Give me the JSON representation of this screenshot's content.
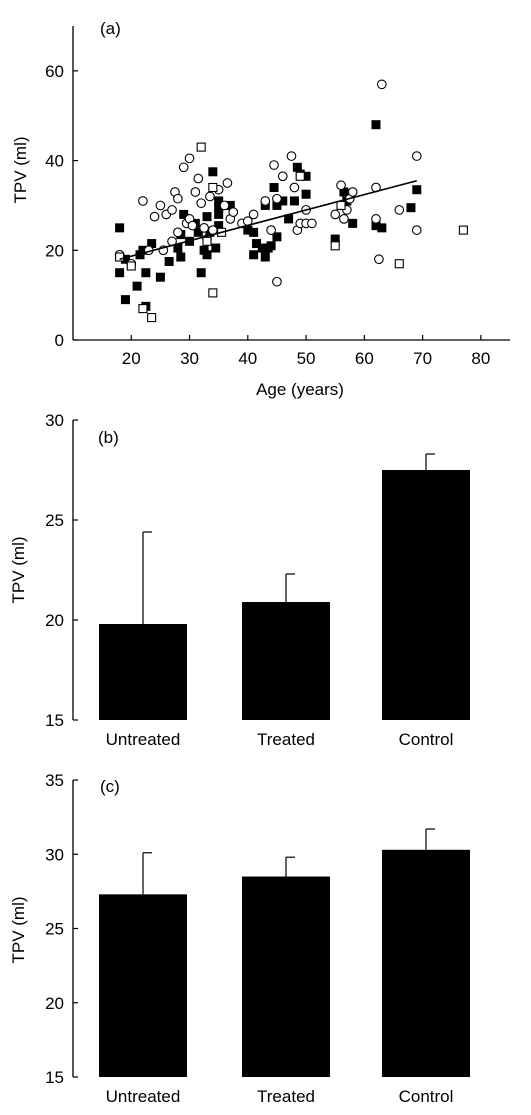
{
  "chart_data": [
    {
      "type": "scatter",
      "panel_label": "(a)",
      "xlabel": "Age (years)",
      "ylabel": "TPV (ml)",
      "xlim": [
        10,
        85
      ],
      "ylim": [
        0,
        70
      ],
      "xticks": [
        20,
        30,
        40,
        50,
        60,
        70,
        80
      ],
      "yticks": [
        0,
        20,
        40,
        60
      ],
      "fit_line": {
        "x": [
          18,
          69
        ],
        "y": [
          18.0,
          35.5
        ]
      },
      "series": [
        {
          "marker": "filled-square",
          "points": [
            [
              18,
              25
            ],
            [
              18,
              15
            ],
            [
              19,
              18
            ],
            [
              19,
              9
            ],
            [
              21,
              12
            ],
            [
              21.5,
              19
            ],
            [
              22,
              20
            ],
            [
              22.5,
              15
            ],
            [
              22.5,
              7.5
            ],
            [
              23.5,
              21.5
            ],
            [
              25,
              14
            ],
            [
              26.5,
              17.5
            ],
            [
              28,
              20.5
            ],
            [
              28.5,
              18.5
            ],
            [
              28.5,
              23.5
            ],
            [
              29,
              28
            ],
            [
              30,
              22
            ],
            [
              31,
              26
            ],
            [
              31.5,
              24
            ],
            [
              32,
              15
            ],
            [
              32.5,
              20
            ],
            [
              33,
              19
            ],
            [
              33,
              27.5
            ],
            [
              33.5,
              24
            ],
            [
              34,
              37.5
            ],
            [
              34.5,
              20.5
            ],
            [
              35,
              31
            ],
            [
              35,
              29.5
            ],
            [
              35,
              28
            ],
            [
              35,
              25.5
            ],
            [
              37,
              30
            ],
            [
              40,
              24.5
            ],
            [
              41,
              24
            ],
            [
              41,
              19
            ],
            [
              41.5,
              21.5
            ],
            [
              42.5,
              20.5
            ],
            [
              43,
              18.5
            ],
            [
              43,
              30
            ],
            [
              43.5,
              20.5
            ],
            [
              44,
              21
            ],
            [
              44.5,
              34
            ],
            [
              45,
              30
            ],
            [
              45,
              23
            ],
            [
              46,
              31
            ],
            [
              47,
              27
            ],
            [
              48,
              31
            ],
            [
              48.5,
              38.5
            ],
            [
              49,
              37
            ],
            [
              50,
              36.5
            ],
            [
              50,
              32.5
            ],
            [
              55,
              22.5
            ],
            [
              56.5,
              33
            ],
            [
              57,
              31
            ],
            [
              58,
              26
            ],
            [
              62,
              48
            ],
            [
              62,
              25.5
            ],
            [
              63,
              25
            ],
            [
              68,
              29.5
            ],
            [
              69,
              33.5
            ]
          ]
        },
        {
          "marker": "open-circle",
          "points": [
            [
              18,
              19
            ],
            [
              20,
              17
            ],
            [
              22,
              31
            ],
            [
              23,
              20
            ],
            [
              24,
              27.5
            ],
            [
              25,
              30
            ],
            [
              25.5,
              20
            ],
            [
              26,
              28
            ],
            [
              27,
              29
            ],
            [
              27,
              22
            ],
            [
              27.5,
              33
            ],
            [
              28,
              31.5
            ],
            [
              28,
              24
            ],
            [
              29,
              38.5
            ],
            [
              29.5,
              26
            ],
            [
              30,
              40.5
            ],
            [
              30,
              27
            ],
            [
              30.5,
              25.5
            ],
            [
              31,
              33
            ],
            [
              31.5,
              36
            ],
            [
              32,
              30.5
            ],
            [
              32.5,
              25
            ],
            [
              33,
              22.5
            ],
            [
              33.5,
              32
            ],
            [
              34,
              24.5
            ],
            [
              35,
              33.5
            ],
            [
              36,
              30
            ],
            [
              36.5,
              35
            ],
            [
              37,
              27
            ],
            [
              37.5,
              28.5
            ],
            [
              39,
              26
            ],
            [
              40,
              26.5
            ],
            [
              41,
              28
            ],
            [
              43,
              31
            ],
            [
              44,
              24.5
            ],
            [
              44.5,
              39
            ],
            [
              45,
              31.5
            ],
            [
              45,
              13
            ],
            [
              46,
              36.5
            ],
            [
              47.5,
              41
            ],
            [
              48,
              34
            ],
            [
              48.5,
              24.5
            ],
            [
              49,
              26
            ],
            [
              50,
              26
            ],
            [
              50,
              29
            ],
            [
              51,
              26
            ],
            [
              55,
              28
            ],
            [
              56,
              34.5
            ],
            [
              56.5,
              27
            ],
            [
              57,
              29
            ],
            [
              57.5,
              31.5
            ],
            [
              58,
              33
            ],
            [
              62,
              27
            ],
            [
              62,
              34
            ],
            [
              62.5,
              18
            ],
            [
              63,
              57
            ],
            [
              66,
              29
            ],
            [
              69,
              41
            ],
            [
              69,
              24.5
            ]
          ]
        },
        {
          "marker": "open-square",
          "points": [
            [
              18,
              18.5
            ],
            [
              20,
              16.5
            ],
            [
              22,
              7
            ],
            [
              23.5,
              5
            ],
            [
              32,
              43
            ],
            [
              33,
              22
            ],
            [
              34,
              34
            ],
            [
              34,
              10.5
            ],
            [
              35.5,
              24
            ],
            [
              49,
              36.5
            ],
            [
              55,
              21
            ],
            [
              56,
              30
            ],
            [
              66,
              17
            ],
            [
              77,
              24.5
            ]
          ]
        }
      ]
    },
    {
      "type": "bar",
      "panel_label": "(b)",
      "ylabel": "TPV (ml)",
      "categories": [
        "Untreated",
        "Treated",
        "Control"
      ],
      "values": [
        19.8,
        20.9,
        27.5
      ],
      "errors": [
        4.6,
        1.4,
        0.8
      ],
      "ylim": [
        15,
        30
      ],
      "yticks": [
        15,
        20,
        25,
        30
      ]
    },
    {
      "type": "bar",
      "panel_label": "(c)",
      "ylabel": "TPV (ml)",
      "categories": [
        "Untreated",
        "Treated",
        "Control"
      ],
      "values": [
        27.3,
        28.5,
        30.3
      ],
      "errors": [
        2.8,
        1.3,
        1.4
      ],
      "ylim": [
        15,
        35
      ],
      "yticks": [
        15,
        20,
        25,
        30,
        35
      ]
    }
  ]
}
